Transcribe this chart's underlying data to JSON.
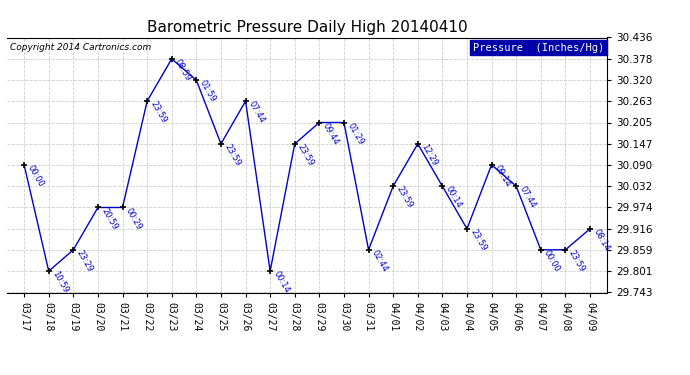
{
  "title": "Barometric Pressure Daily High 20140410",
  "copyright": "Copyright 2014 Cartronics.com",
  "legend_label": "Pressure  (Inches/Hg)",
  "x_labels": [
    "03/17",
    "03/18",
    "03/19",
    "03/20",
    "03/21",
    "03/22",
    "03/23",
    "03/24",
    "03/25",
    "03/26",
    "03/27",
    "03/28",
    "03/29",
    "03/30",
    "03/31",
    "04/01",
    "04/02",
    "04/03",
    "04/04",
    "04/05",
    "04/06",
    "04/07",
    "04/08",
    "04/09"
  ],
  "y_values": [
    30.09,
    29.801,
    29.859,
    29.974,
    29.974,
    30.263,
    30.378,
    30.32,
    30.147,
    30.263,
    29.801,
    30.147,
    30.205,
    30.205,
    29.859,
    30.032,
    30.147,
    30.032,
    29.916,
    30.09,
    30.032,
    29.859,
    29.859,
    29.916
  ],
  "point_labels": [
    "00:00",
    "10:59",
    "23:29",
    "20:59",
    "00:29",
    "23:59",
    "08:59",
    "01:59",
    "23:59",
    "07:44",
    "00:14",
    "23:59",
    "09:44",
    "01:29",
    "02:44",
    "23:59",
    "12:29",
    "00:14",
    "23:59",
    "09:14",
    "07:44",
    "00:00",
    "23:59",
    "08:14"
  ],
  "ylim": [
    29.743,
    30.436
  ],
  "yticks": [
    29.743,
    29.801,
    29.859,
    29.916,
    29.974,
    30.032,
    30.09,
    30.147,
    30.205,
    30.263,
    30.32,
    30.378,
    30.436
  ],
  "line_color": "#0000CC",
  "marker_color": "#000000",
  "grid_color": "#CCCCCC",
  "bg_color": "#FFFFFF",
  "title_fontsize": 11,
  "legend_bg": "#0000AA",
  "legend_fg": "#FFFFFF"
}
